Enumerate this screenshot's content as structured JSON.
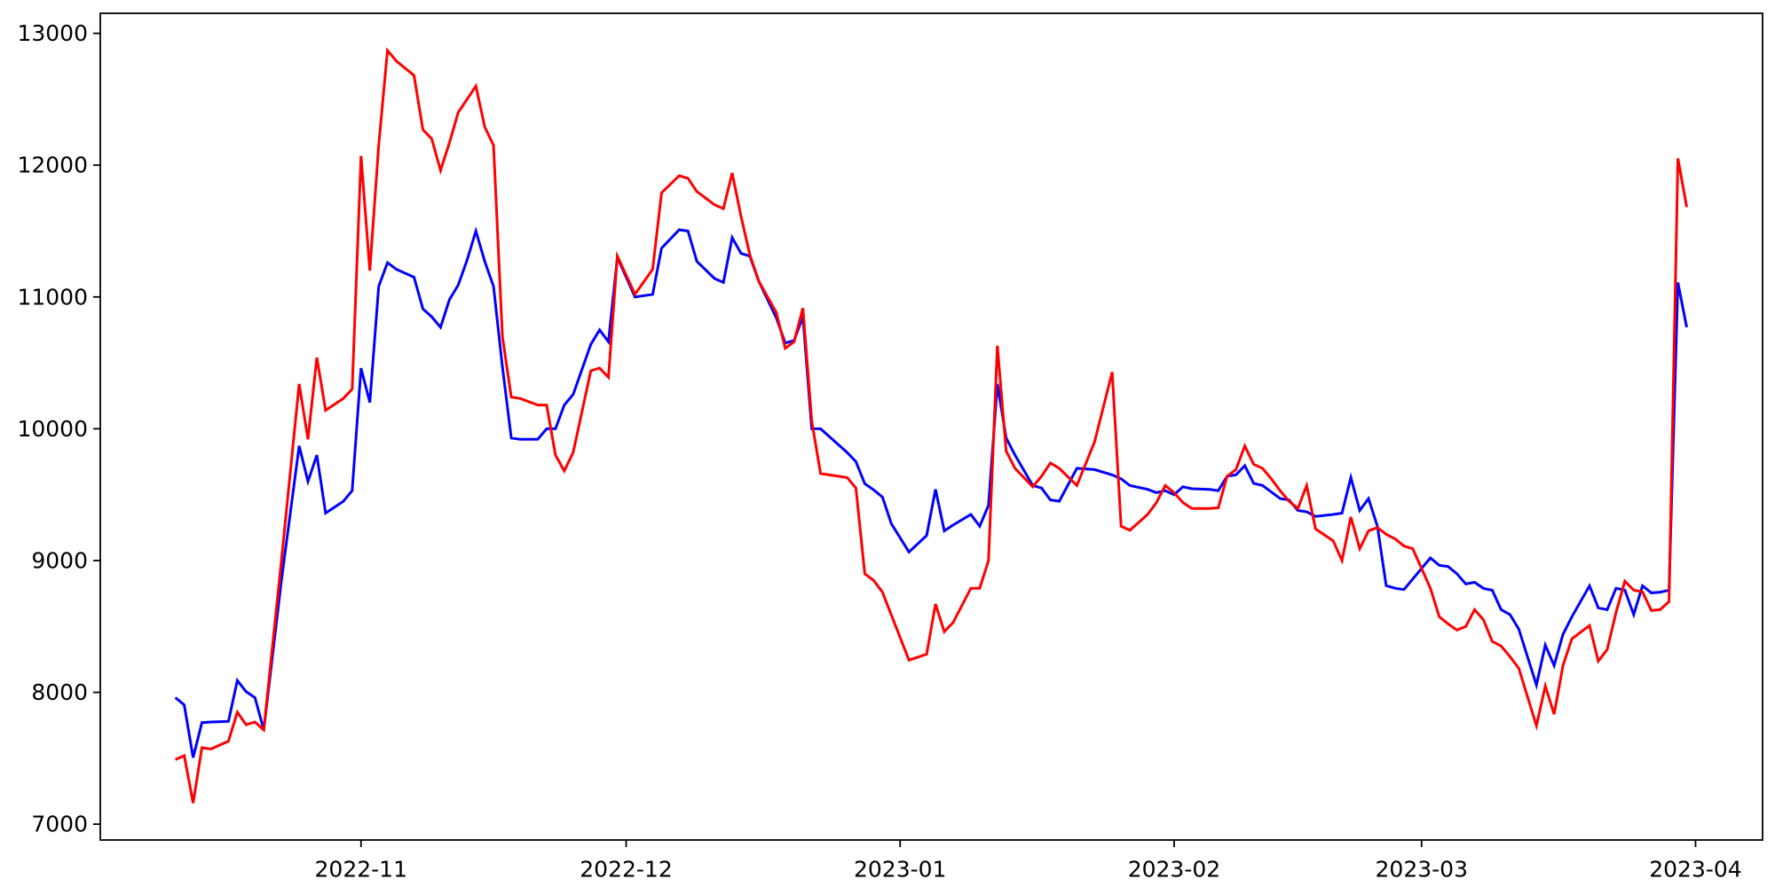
{
  "chart_data": {
    "type": "line",
    "title": "",
    "xlabel": "",
    "ylabel": "",
    "grid": false,
    "legend": "none",
    "background_color": "#ffffff",
    "spine_color": "#000000",
    "x_ticks": [
      "2022-11",
      "2022-12",
      "2023-01",
      "2023-02",
      "2023-03",
      "2023-04"
    ],
    "x_tick_dates": [
      "2022-11-01",
      "2022-12-01",
      "2023-01-01",
      "2023-02-01",
      "2023-03-01",
      "2023-04-01"
    ],
    "y_ticks": [
      7000,
      8000,
      9000,
      10000,
      11000,
      12000,
      13000
    ],
    "xlim_dates": [
      "2022-10-02T12:00:00Z",
      "2023-04-08T14:00:00Z"
    ],
    "ylim": [
      6880,
      13152
    ],
    "x_dates": [
      "2022-10-11",
      "2022-10-12",
      "2022-10-13",
      "2022-10-14",
      "2022-10-15",
      "2022-10-17",
      "2022-10-18",
      "2022-10-19",
      "2022-10-20",
      "2022-10-21",
      "2022-10-23",
      "2022-10-25",
      "2022-10-26",
      "2022-10-27",
      "2022-10-28",
      "2022-10-30",
      "2022-10-31",
      "2022-11-01",
      "2022-11-02",
      "2022-11-03",
      "2022-11-04",
      "2022-11-05",
      "2022-11-07",
      "2022-11-08",
      "2022-11-09",
      "2022-11-10",
      "2022-11-11",
      "2022-11-12",
      "2022-11-13",
      "2022-11-14",
      "2022-11-15",
      "2022-11-16",
      "2022-11-17",
      "2022-11-18",
      "2022-11-19",
      "2022-11-21",
      "2022-11-22",
      "2022-11-23",
      "2022-11-24",
      "2022-11-25",
      "2022-11-27",
      "2022-11-28",
      "2022-11-29",
      "2022-11-30",
      "2022-12-02",
      "2022-12-04",
      "2022-12-05",
      "2022-12-07",
      "2022-12-08",
      "2022-12-09",
      "2022-12-11",
      "2022-12-12",
      "2022-12-13",
      "2022-12-14",
      "2022-12-15",
      "2022-12-16",
      "2022-12-18",
      "2022-12-19",
      "2022-12-20",
      "2022-12-21",
      "2022-12-22",
      "2022-12-23",
      "2022-12-26",
      "2022-12-27",
      "2022-12-28",
      "2022-12-29",
      "2022-12-30",
      "2022-12-31",
      "2023-01-02",
      "2023-01-04",
      "2023-01-05",
      "2023-01-06",
      "2023-01-07",
      "2023-01-09",
      "2023-01-10",
      "2023-01-11",
      "2023-01-12",
      "2023-01-13",
      "2023-01-14",
      "2023-01-16",
      "2023-01-17",
      "2023-01-18",
      "2023-01-19",
      "2023-01-21",
      "2023-01-23",
      "2023-01-25",
      "2023-01-26",
      "2023-01-27",
      "2023-01-29",
      "2023-01-30",
      "2023-01-31",
      "2023-02-01",
      "2023-02-02",
      "2023-02-03",
      "2023-02-05",
      "2023-02-06",
      "2023-02-07",
      "2023-02-08",
      "2023-02-09",
      "2023-02-10",
      "2023-02-11",
      "2023-02-12",
      "2023-02-13",
      "2023-02-14",
      "2023-02-15",
      "2023-02-16",
      "2023-02-17",
      "2023-02-19",
      "2023-02-20",
      "2023-02-21",
      "2023-02-22",
      "2023-02-23",
      "2023-02-24",
      "2023-02-25",
      "2023-02-26",
      "2023-02-27",
      "2023-02-28",
      "2023-03-02",
      "2023-03-03",
      "2023-03-04",
      "2023-03-05",
      "2023-03-06",
      "2023-03-07",
      "2023-03-08",
      "2023-03-09",
      "2023-03-10",
      "2023-03-11",
      "2023-03-12",
      "2023-03-14",
      "2023-03-15",
      "2023-03-16",
      "2023-03-17",
      "2023-03-18",
      "2023-03-20",
      "2023-03-21",
      "2023-03-22",
      "2023-03-23",
      "2023-03-24",
      "2023-03-25",
      "2023-03-26",
      "2023-03-27",
      "2023-03-28",
      "2023-03-29",
      "2023-03-30",
      "2023-03-31"
    ],
    "series": [
      {
        "name": "blue-series",
        "color": "#0000ff",
        "values": [
          7960,
          7905,
          7505,
          7770,
          7775,
          7780,
          8090,
          8005,
          7960,
          7715,
          8850,
          9870,
          9600,
          9800,
          9360,
          9450,
          9530,
          10460,
          10200,
          11080,
          11260,
          11210,
          11150,
          10910,
          10850,
          10770,
          10980,
          11090,
          11280,
          11500,
          11270,
          11080,
          10470,
          9930,
          9920,
          9920,
          10000,
          10000,
          10180,
          10260,
          10640,
          10750,
          10660,
          11300,
          11000,
          11020,
          11370,
          11510,
          11500,
          11270,
          11140,
          11110,
          11450,
          11330,
          11310,
          11120,
          10840,
          10650,
          10670,
          10850,
          10000,
          10000,
          9820,
          9750,
          9583,
          9536,
          9482,
          9280,
          9065,
          9190,
          9540,
          9225,
          9270,
          9350,
          9260,
          9420,
          10340,
          9930,
          9800,
          9570,
          9550,
          9460,
          9450,
          9700,
          9690,
          9650,
          9620,
          9570,
          9540,
          9515,
          9530,
          9500,
          9560,
          9545,
          9540,
          9530,
          9640,
          9650,
          9720,
          9585,
          9570,
          9520,
          9470,
          9460,
          9380,
          9370,
          9335,
          9350,
          9360,
          9630,
          9380,
          9470,
          9260,
          8810,
          8790,
          8780,
          8860,
          9020,
          8964,
          8955,
          8900,
          8822,
          8835,
          8789,
          8775,
          8628,
          8590,
          8480,
          8056,
          8359,
          8203,
          8440,
          8573,
          8809,
          8641,
          8628,
          8790,
          8776,
          8590,
          8809,
          8755,
          8760,
          8776,
          11110,
          10770
        ]
      },
      {
        "name": "red-series",
        "color": "#ff0000",
        "values": [
          7490,
          7520,
          7160,
          7580,
          7570,
          7630,
          7850,
          7755,
          7775,
          7715,
          9000,
          10340,
          9920,
          10540,
          10140,
          10230,
          10300,
          12070,
          11200,
          12150,
          12870,
          12790,
          12680,
          12270,
          12200,
          11960,
          12170,
          12400,
          12500,
          12600,
          12290,
          12150,
          10700,
          10240,
          10230,
          10180,
          10180,
          9800,
          9680,
          9820,
          10440,
          10460,
          10390,
          11310,
          11020,
          11210,
          11790,
          11920,
          11900,
          11800,
          11700,
          11670,
          11940,
          11610,
          11320,
          11120,
          10880,
          10610,
          10660,
          10915,
          10060,
          9660,
          9630,
          9550,
          8900,
          8850,
          8760,
          8587,
          8245,
          8290,
          8670,
          8460,
          8530,
          8790,
          8790,
          9000,
          10630,
          9830,
          9700,
          9560,
          9640,
          9740,
          9700,
          9570,
          9900,
          10430,
          9260,
          9230,
          9350,
          9440,
          9570,
          9515,
          9440,
          9395,
          9395,
          9400,
          9640,
          9690,
          9870,
          9730,
          9700,
          9620,
          9530,
          9450,
          9395,
          9570,
          9240,
          9150,
          9000,
          9330,
          9090,
          9225,
          9250,
          9200,
          9165,
          9110,
          9090,
          8790,
          8574,
          8520,
          8473,
          8500,
          8628,
          8550,
          8386,
          8352,
          8271,
          8183,
          7747,
          8049,
          7834,
          8203,
          8406,
          8507,
          8237,
          8325,
          8607,
          8843,
          8776,
          8762,
          8621,
          8628,
          8688,
          12052,
          11682
        ]
      }
    ]
  }
}
